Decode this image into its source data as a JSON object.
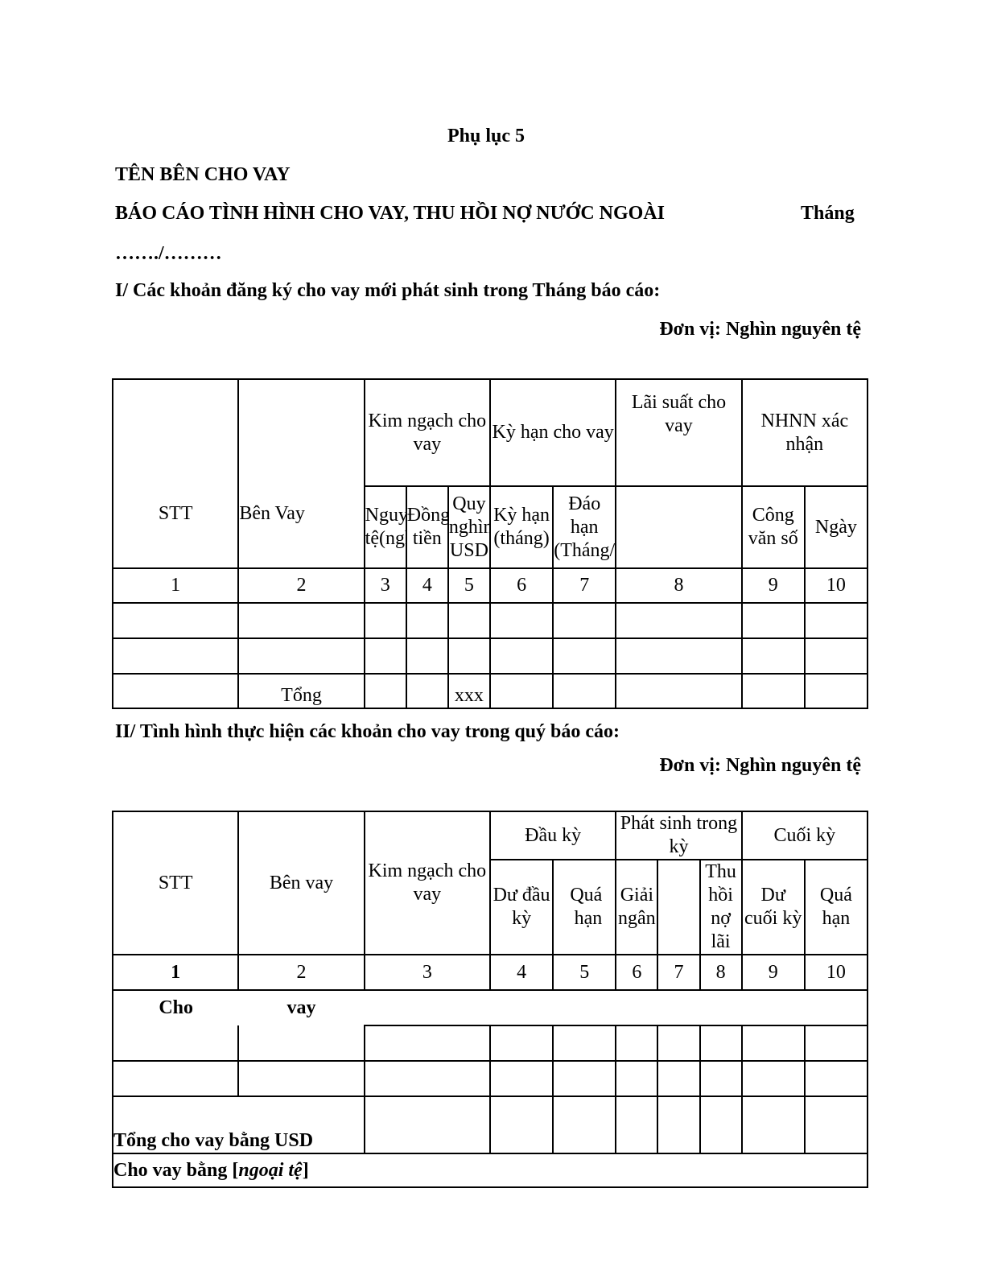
{
  "header": {
    "appendix": "Phụ lục 5",
    "lender": "TÊN BÊN CHO VAY",
    "report_title": "BÁO CÁO TÌNH HÌNH CHO VAY, THU HỒI NỢ NƯỚC NGOÀI",
    "month_label": "Tháng",
    "period": "……./………"
  },
  "section1": {
    "heading": "I/ Các khoản đăng ký cho vay mới phát sinh trong Tháng báo cáo:",
    "unit": "Đơn vị: Nghìn nguyên tệ",
    "headers": {
      "stt": "STT",
      "ben_vay": "Bên Vay",
      "kim_ngach": "Kim ngạch cho vay",
      "ky_han": "Kỳ hạn cho vay",
      "lai_suat": "Lãi suất cho vay",
      "nhnn": "NHNN xác nhận",
      "nguyen_te": "Nguyên tệ(nghìn",
      "dong_tien": "Đồng tiền",
      "quy_usd": "Quy nghìn USD",
      "ky_han_thang": "Kỳ hạn (tháng)",
      "dao_han": "Đáo hạn (Tháng/",
      "cong_van": "Công văn số",
      "ngay": "Ngày"
    },
    "column_numbers": [
      "1",
      "2",
      "3",
      "4",
      "5",
      "6",
      "7",
      "8",
      "9",
      "10"
    ],
    "total_label": "Tổng",
    "total_usd": "xxx"
  },
  "section2": {
    "heading": "II/ Tình hình thực hiện các khoản cho vay trong quý báo cáo:",
    "unit": "Đơn vị: Nghìn nguyên tệ",
    "headers": {
      "stt": "STT",
      "ben_vay": "Bên vay",
      "kim_ngach": "Kim ngạch cho vay",
      "dau_ky": "Đầu kỳ",
      "phat_sinh": "Phát sinh trong kỳ",
      "cuoi_ky": "Cuối kỳ",
      "du_dau_ky": "Dư đầu kỳ",
      "qua_han_1": "Quá hạn",
      "giai_ngan": "Giải ngân",
      "thu_hoi": "Thu hồi nợ lãi",
      "du_cuoi_ky": "Dư cuối kỳ",
      "qua_han_2": "Quá hạn"
    },
    "column_numbers": [
      "1",
      "2",
      "3",
      "4",
      "5",
      "6",
      "7",
      "8",
      "9",
      "10"
    ],
    "cho_vay_1": "Cho",
    "cho_vay_2": "vay",
    "total_usd_label": "Tổng cho vay bằng USD",
    "foreign_label": "Cho vay bằng [",
    "foreign_italic": "ngoại tệ",
    "foreign_close": "]"
  }
}
